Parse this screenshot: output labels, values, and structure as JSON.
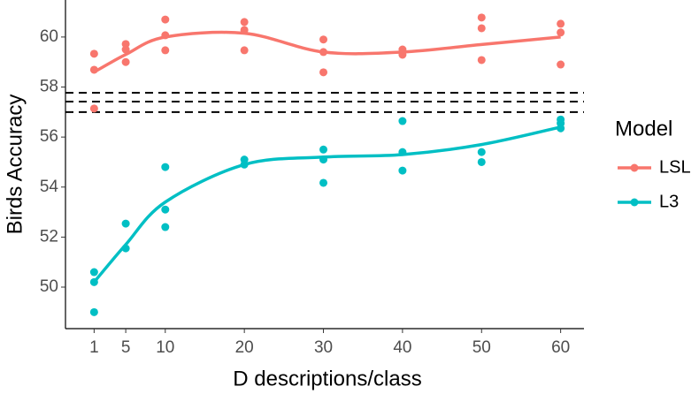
{
  "chart_data": {
    "type": "scatter",
    "x_label": "D descriptions/class",
    "y_label": "Birds Accuracy",
    "legend_title": "Model",
    "xlim": [
      -1.95,
      62.95
    ],
    "ylim": [
      48.34,
      61.48
    ],
    "xticks": [
      1,
      5,
      10,
      20,
      30,
      40,
      50,
      60
    ],
    "yticks": [
      50,
      52,
      54,
      56,
      58,
      60
    ],
    "reference_lines": [
      57.77,
      57.42,
      57.0
    ],
    "fit_x": [
      1,
      5,
      10,
      20,
      30,
      40,
      50,
      60
    ],
    "series": [
      {
        "name": "LSL",
        "color": "#f8766d",
        "x": [
          1,
          1,
          1,
          5,
          5,
          5,
          10,
          10,
          10,
          20,
          20,
          20,
          30,
          30,
          30,
          40,
          40,
          50,
          50,
          50,
          60,
          60,
          60
        ],
        "values": [
          59.33,
          58.69,
          57.14,
          59.72,
          59.5,
          59.0,
          60.7,
          60.07,
          59.47,
          60.6,
          60.28,
          59.47,
          59.9,
          59.4,
          58.59,
          59.5,
          59.29,
          60.78,
          60.35,
          59.08,
          60.53,
          60.18,
          58.9
        ],
        "fit": [
          58.6,
          59.3,
          60.0,
          60.15,
          59.4,
          59.4,
          59.7,
          60.0
        ]
      },
      {
        "name": "L3",
        "color": "#00bfc4",
        "x": [
          1,
          1,
          1,
          5,
          5,
          10,
          10,
          10,
          20,
          20,
          30,
          30,
          30,
          40,
          40,
          40,
          50,
          50,
          60,
          60,
          60
        ],
        "values": [
          50.6,
          50.2,
          49.0,
          52.54,
          51.55,
          54.8,
          53.1,
          52.4,
          55.1,
          54.9,
          55.5,
          55.1,
          54.17,
          56.64,
          55.4,
          54.66,
          55.4,
          55.0,
          56.7,
          56.55,
          56.35
        ],
        "fit": [
          50.2,
          51.7,
          53.4,
          54.9,
          55.2,
          55.3,
          55.7,
          56.4
        ]
      }
    ]
  }
}
